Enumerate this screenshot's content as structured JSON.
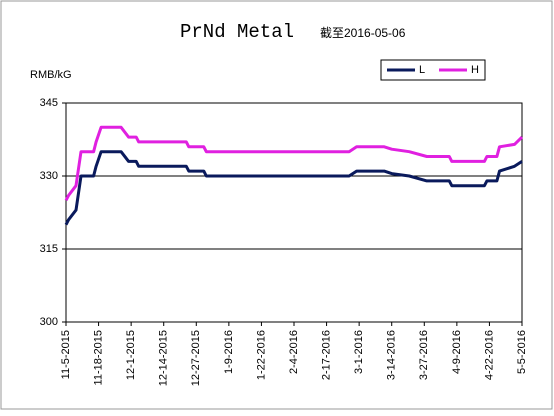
{
  "chart_data": {
    "type": "line",
    "title": "PrNd Metal",
    "subtitle": "截至2016-05-06",
    "ylabel": "RMB/kG",
    "x": [
      "11-5-2015",
      "11-6-2015",
      "11-9-2015",
      "11-11-2015",
      "11-16-2015",
      "11-17-2015",
      "11-19-2015",
      "11-27-2015",
      "11-30-2015",
      "12-3-2015",
      "12-4-2015",
      "12-23-2015",
      "12-24-2015",
      "12-30-2015",
      "12-31-2015",
      "2-26-2016",
      "2-29-2016",
      "3-11-2016",
      "3-14-2016",
      "3-21-2016",
      "3-28-2016",
      "4-6-2016",
      "4-7-2016",
      "4-20-2016",
      "4-21-2016",
      "4-25-2016",
      "4-26-2016",
      "5-2-2016",
      "5-5-2016"
    ],
    "series": [
      {
        "name": "L",
        "color": "#0a1a5c",
        "values": [
          320,
          321,
          323,
          330,
          330,
          332,
          335,
          335,
          333,
          333,
          332,
          332,
          331,
          331,
          330,
          330,
          331,
          331,
          330.5,
          330,
          329,
          329,
          328,
          328,
          329,
          329,
          331,
          332,
          333
        ]
      },
      {
        "name": "H",
        "color": "#e020e0",
        "values": [
          325,
          326,
          328,
          335,
          335,
          337,
          340,
          340,
          338,
          338,
          337,
          337,
          336,
          336,
          335,
          335,
          336,
          336,
          335.5,
          335,
          334,
          334,
          333,
          333,
          334,
          334,
          336,
          336.5,
          338
        ]
      }
    ],
    "xlim": [
      "11-5-2015",
      "5-5-2016"
    ],
    "xticks": [
      "11-5-2015",
      "11-18-2015",
      "12-1-2015",
      "12-14-2015",
      "12-27-2015",
      "1-9-2016",
      "1-22-2016",
      "2-4-2016",
      "2-17-2016",
      "3-1-2016",
      "3-14-2016",
      "3-27-2016",
      "4-9-2016",
      "4-22-2016",
      "5-5-2016"
    ],
    "ylim": [
      300,
      345
    ],
    "yticks": [
      300,
      315,
      330,
      345
    ],
    "grid": true,
    "legend": "top-right"
  }
}
